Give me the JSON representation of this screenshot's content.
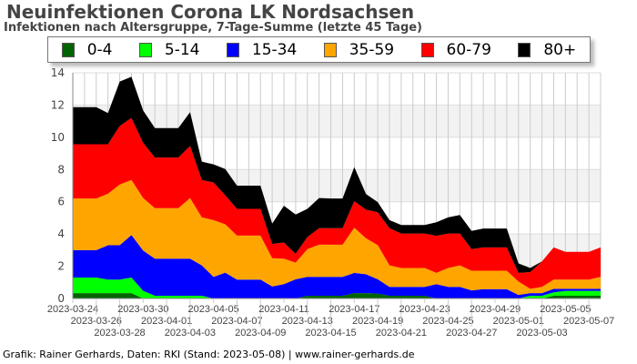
{
  "chart_data": {
    "type": "area",
    "stacked": true,
    "title": "Neuinfektionen Corona LK Nordsachsen",
    "subtitle": "Infektionen nach Altersgruppe, 7-Tage-Summe (letzte 45 Tage)",
    "ylim": [
      0,
      14
    ],
    "yticks": [
      0,
      2,
      4,
      6,
      8,
      10,
      12,
      14
    ],
    "grid": true,
    "legend": "top",
    "x": [
      "2023-03-24",
      "2023-03-25",
      "2023-03-26",
      "2023-03-27",
      "2023-03-28",
      "2023-03-29",
      "2023-03-30",
      "2023-03-31",
      "2023-04-01",
      "2023-04-02",
      "2023-04-03",
      "2023-04-04",
      "2023-04-05",
      "2023-04-06",
      "2023-04-07",
      "2023-04-08",
      "2023-04-09",
      "2023-04-10",
      "2023-04-11",
      "2023-04-12",
      "2023-04-13",
      "2023-04-14",
      "2023-04-15",
      "2023-04-16",
      "2023-04-17",
      "2023-04-18",
      "2023-04-19",
      "2023-04-20",
      "2023-04-21",
      "2023-04-22",
      "2023-04-23",
      "2023-04-24",
      "2023-04-25",
      "2023-04-26",
      "2023-04-27",
      "2023-04-28",
      "2023-04-29",
      "2023-04-30",
      "2023-05-01",
      "2023-05-02",
      "2023-05-03",
      "2023-05-04",
      "2023-05-05",
      "2023-05-06",
      "2023-05-07",
      "2023-05-08"
    ],
    "xtick_labels": [
      "2023-03-24",
      "2023-03-26",
      "2023-03-28",
      "2023-03-30",
      "2023-04-01",
      "2023-04-03",
      "2023-04-05",
      "2023-04-07",
      "2023-04-09",
      "2023-04-11",
      "2023-04-13",
      "2023-04-15",
      "2023-04-17",
      "2023-04-19",
      "2023-04-21",
      "2023-04-23",
      "2023-04-25",
      "2023-04-27",
      "2023-04-29",
      "2023-05-01",
      "2023-05-03",
      "2023-05-05",
      "2023-05-07"
    ],
    "series": [
      {
        "name": "0-4",
        "color": "#006400",
        "values": [
          0.33,
          0.33,
          0.33,
          0.33,
          0.33,
          0.33,
          0,
          0,
          0,
          0,
          0,
          0,
          0,
          0,
          0,
          0,
          0,
          0,
          0,
          0,
          0.17,
          0.17,
          0.17,
          0.17,
          0.33,
          0.33,
          0.3,
          0.17,
          0.17,
          0.17,
          0.17,
          0,
          0,
          0,
          0,
          0,
          0,
          0,
          0,
          0,
          0,
          0.17,
          0.17,
          0.17,
          0.17,
          0.17
        ]
      },
      {
        "name": "5-14",
        "color": "#00ff00",
        "values": [
          0.97,
          0.97,
          0.97,
          0.84,
          0.84,
          0.97,
          0.47,
          0.17,
          0.17,
          0.17,
          0.17,
          0.17,
          0,
          0,
          0,
          0,
          0,
          0,
          0,
          0,
          0,
          0,
          0,
          0,
          0,
          0,
          0,
          0,
          0,
          0,
          0,
          0,
          0,
          0,
          0,
          0,
          0,
          0,
          0,
          0.17,
          0.17,
          0.21,
          0.3,
          0.3,
          0.3,
          0.3
        ]
      },
      {
        "name": "15-34",
        "color": "#0000ff",
        "values": [
          1.7,
          1.7,
          1.7,
          2.13,
          2.13,
          2.64,
          2.5,
          2.3,
          2.3,
          2.3,
          2.3,
          1.88,
          1.34,
          1.6,
          1.17,
          1.17,
          1.17,
          0.75,
          0.89,
          1.19,
          1.17,
          1.17,
          1.17,
          1.17,
          1.26,
          1.17,
          0.89,
          0.55,
          0.55,
          0.55,
          0.55,
          0.89,
          0.72,
          0.72,
          0.5,
          0.58,
          0.58,
          0.58,
          0.22,
          0.16,
          0.16,
          0.22,
          0.13,
          0.13,
          0.13,
          0.13
        ]
      },
      {
        "name": "35-59",
        "color": "#ffa500",
        "values": [
          3.2,
          3.2,
          3.2,
          3.2,
          3.77,
          3.41,
          3.26,
          3.13,
          3.13,
          3.13,
          3.76,
          2.98,
          3.52,
          3.0,
          2.73,
          2.73,
          2.73,
          1.75,
          1.58,
          1.03,
          1.72,
          2.0,
          2.0,
          2.0,
          2.8,
          2.23,
          2.12,
          1.33,
          1.17,
          1.17,
          1.17,
          0.7,
          1.17,
          1.33,
          1.22,
          1.14,
          1.14,
          1.14,
          0.83,
          0.27,
          0.39,
          0.57,
          0.57,
          0.57,
          0.57,
          0.74
        ]
      },
      {
        "name": "60-79",
        "color": "#ff0000",
        "values": [
          3.37,
          3.37,
          3.37,
          3.07,
          3.63,
          3.85,
          3.42,
          3.14,
          3.14,
          3.14,
          3.23,
          2.32,
          2.34,
          1.8,
          1.66,
          1.66,
          1.66,
          0.89,
          1.0,
          0.55,
          0.75,
          1.02,
          1.02,
          1.02,
          1.64,
          1.78,
          2.04,
          2.31,
          2.14,
          2.14,
          2.14,
          2.3,
          2.14,
          1.98,
          1.34,
          1.45,
          1.45,
          1.45,
          0.54,
          1.04,
          1.58,
          2.0,
          1.72,
          1.72,
          1.72,
          1.83
        ]
      },
      {
        "name": "80+",
        "color": "#000000",
        "values": [
          2.3,
          2.3,
          2.3,
          1.93,
          2.76,
          2.55,
          2.01,
          1.83,
          1.83,
          1.83,
          2.1,
          1.14,
          1.12,
          1.63,
          1.44,
          1.44,
          1.44,
          1.25,
          2.28,
          2.44,
          1.75,
          1.87,
          1.84,
          1.84,
          2.12,
          0.97,
          0.63,
          0.5,
          0.53,
          0.53,
          0.53,
          0.84,
          1.0,
          1.15,
          1.13,
          1.17,
          1.17,
          1.17,
          0.58,
          0.25,
          0,
          0,
          0,
          0,
          0,
          0
        ]
      }
    ]
  },
  "footer": "Grafik: Rainer Gerhards, Daten: RKI (Stand: 2023-05-08) | www.rainer-gerhards.de"
}
